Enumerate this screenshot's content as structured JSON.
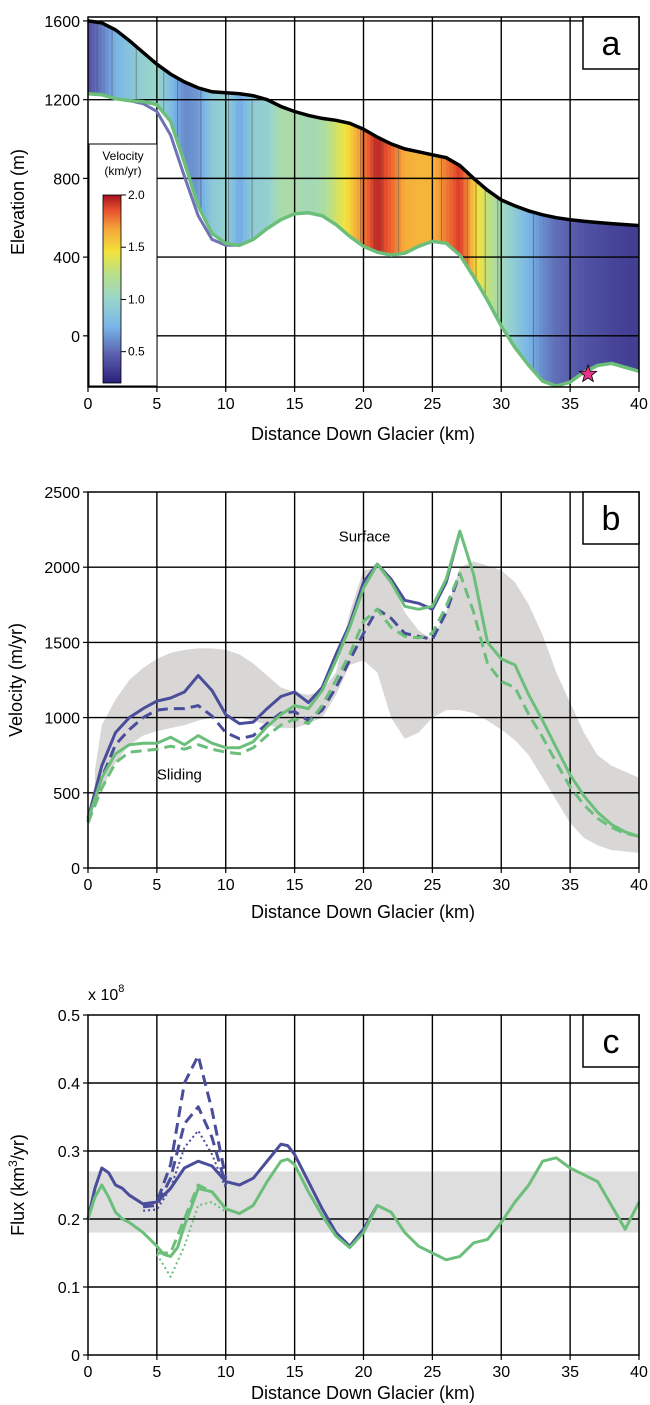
{
  "colors": {
    "blue": "#4a4d99",
    "green": "#6cbf7a",
    "envelope": "#d9d7d6",
    "band": "#dedede",
    "surface": "#000000",
    "star": "#e8348a"
  },
  "chart_data": [
    {
      "id": "a",
      "type": "area",
      "panel_label": "a",
      "xlabel": "Distance Down Glacier (km)",
      "ylabel": "Elevation (m)",
      "xlim": [
        0,
        40
      ],
      "ylim": [
        -260,
        1620
      ],
      "xticks": [
        0,
        5,
        10,
        15,
        20,
        25,
        30,
        35,
        40
      ],
      "yticks": [
        0,
        400,
        800,
        1200,
        1600
      ],
      "grid": true,
      "legend_position": "left",
      "colorbar": {
        "title_line1": "Velocity",
        "title_line2": "(km/yr)",
        "ticks": [
          0.5,
          1.0,
          1.5,
          2.0
        ],
        "tick_labels": [
          "0.5",
          "1.0",
          "1.5",
          "2.0"
        ],
        "range": [
          0.2,
          2.0
        ]
      },
      "surface": {
        "x": [
          0,
          1,
          2,
          3,
          4,
          5,
          6,
          7,
          8,
          9,
          10,
          11,
          12,
          13,
          14,
          15,
          16,
          17,
          18,
          19,
          20,
          21,
          22,
          23,
          24,
          25,
          26,
          27,
          28,
          29,
          30,
          31,
          32,
          33,
          34,
          35,
          36,
          37,
          38,
          39,
          40
        ],
        "y": [
          1600,
          1590,
          1555,
          1500,
          1440,
          1380,
          1330,
          1290,
          1260,
          1240,
          1235,
          1230,
          1220,
          1200,
          1165,
          1140,
          1120,
          1105,
          1095,
          1080,
          1050,
          1010,
          975,
          950,
          935,
          920,
          905,
          865,
          800,
          740,
          690,
          660,
          635,
          615,
          600,
          590,
          582,
          576,
          570,
          565,
          560
        ]
      },
      "bed": {
        "x": [
          0,
          1,
          2,
          3,
          4,
          5,
          6,
          7,
          8,
          9,
          10,
          11,
          12,
          13,
          14,
          15,
          16,
          17,
          18,
          19,
          20,
          21,
          22,
          23,
          24,
          25,
          26,
          27,
          28,
          29,
          30,
          31,
          32,
          33,
          34,
          35,
          36,
          37,
          38,
          39,
          40
        ],
        "y": [
          1230,
          1225,
          1205,
          1195,
          1190,
          1175,
          1090,
          880,
          660,
          520,
          470,
          460,
          490,
          545,
          590,
          620,
          625,
          610,
          565,
          505,
          455,
          425,
          410,
          420,
          455,
          480,
          470,
          410,
          300,
          180,
          50,
          -60,
          -150,
          -230,
          -255,
          -235,
          -185,
          -150,
          -140,
          -160,
          -180
        ]
      },
      "alt_bed": {
        "x": [
          0,
          1,
          2,
          3,
          4,
          5,
          6,
          7,
          8,
          9,
          10,
          11
        ],
        "y": [
          1230,
          1225,
          1205,
          1195,
          1180,
          1140,
          1020,
          810,
          610,
          490,
          460,
          460
        ]
      },
      "velocity_profile": {
        "x": [
          0,
          1,
          2,
          3,
          4,
          5,
          6,
          7,
          8,
          9,
          10,
          11,
          12,
          13,
          14,
          15,
          16,
          17,
          18,
          19,
          20,
          21,
          22,
          23,
          24,
          25,
          26,
          27,
          28,
          29,
          30,
          31,
          32,
          33,
          34,
          35,
          36,
          37,
          38,
          39,
          40
        ],
        "values": [
          0.4,
          0.55,
          0.75,
          0.85,
          0.95,
          1.0,
          0.8,
          0.6,
          0.65,
          0.9,
          0.95,
          0.7,
          0.92,
          0.95,
          1.1,
          1.1,
          1.05,
          1.1,
          1.3,
          1.5,
          1.75,
          1.95,
          1.8,
          1.62,
          1.6,
          1.6,
          1.75,
          1.9,
          1.55,
          1.25,
          1.05,
          0.9,
          0.75,
          0.6,
          0.5,
          0.45,
          0.4,
          0.38,
          0.35,
          0.33,
          0.32
        ]
      },
      "star": {
        "x": 36.3,
        "y": -195
      }
    },
    {
      "id": "b",
      "type": "line",
      "panel_label": "b",
      "xlabel": "Distance Down Glacier (km)",
      "ylabel": "Velocity (m/yr)",
      "xlim": [
        0,
        40
      ],
      "ylim": [
        0,
        2500
      ],
      "xticks": [
        0,
        5,
        10,
        15,
        20,
        25,
        30,
        35,
        40
      ],
      "yticks": [
        0,
        500,
        1000,
        1500,
        2000,
        2500
      ],
      "grid": true,
      "annotations": [
        {
          "text": "Surface",
          "x": 18.2,
          "y": 2170
        },
        {
          "text": "Sliding",
          "x": 5.0,
          "y": 590
        }
      ],
      "envelope": {
        "x": [
          0.5,
          1,
          2,
          3,
          4,
          5,
          6,
          7,
          8,
          9,
          10,
          11,
          12,
          13,
          14,
          15,
          16,
          17,
          18,
          19,
          20,
          21,
          22,
          23,
          24,
          25,
          26,
          27,
          28,
          29,
          30,
          31,
          32,
          33,
          34,
          35,
          36,
          37,
          38,
          39,
          40
        ],
        "upper": [
          650,
          950,
          1120,
          1250,
          1330,
          1390,
          1430,
          1450,
          1460,
          1460,
          1450,
          1420,
          1360,
          1280,
          1200,
          1170,
          1150,
          1180,
          1300,
          1700,
          1980,
          2000,
          1900,
          1700,
          1580,
          1520,
          1700,
          2000,
          2040,
          2010,
          1980,
          1900,
          1750,
          1550,
          1300,
          1100,
          900,
          750,
          680,
          640,
          600
        ],
        "lower": [
          400,
          520,
          700,
          820,
          880,
          910,
          930,
          950,
          980,
          1000,
          1010,
          1000,
          980,
          950,
          930,
          930,
          960,
          1000,
          1150,
          1350,
          1380,
          1300,
          1000,
          860,
          900,
          1000,
          1050,
          1050,
          1030,
          980,
          920,
          850,
          750,
          600,
          450,
          300,
          200,
          150,
          120,
          110,
          100
        ]
      },
      "series": [
        {
          "style": "solid",
          "color": "#4a4d99",
          "x": [
            0,
            1,
            2,
            3,
            4,
            5,
            6,
            7,
            8,
            9,
            10,
            11,
            12,
            13,
            14,
            15,
            16,
            17,
            18,
            19,
            20,
            21,
            22,
            23,
            24,
            25,
            26,
            27
          ],
          "values": [
            330,
            680,
            900,
            1000,
            1060,
            1110,
            1130,
            1170,
            1280,
            1180,
            1020,
            960,
            970,
            1060,
            1140,
            1170,
            1100,
            1200,
            1420,
            1620,
            1900,
            2020,
            1920,
            1780,
            1760,
            1720,
            1900,
            2240
          ]
        },
        {
          "style": "dashed",
          "color": "#4a4d99",
          "x": [
            0,
            1,
            2,
            3,
            4,
            5,
            6,
            7,
            8,
            9,
            10,
            11,
            12,
            13,
            14,
            15,
            16,
            17,
            18,
            19,
            20,
            21,
            22,
            23,
            24,
            25,
            26,
            27
          ],
          "values": [
            310,
            600,
            820,
            920,
            1000,
            1050,
            1060,
            1060,
            1080,
            1010,
            900,
            860,
            880,
            960,
            1030,
            1040,
            980,
            1050,
            1200,
            1380,
            1560,
            1720,
            1660,
            1560,
            1540,
            1520,
            1700,
            1960
          ]
        },
        {
          "style": "solid",
          "color": "#6cbf7a",
          "x": [
            0,
            1,
            2,
            3,
            4,
            5,
            6,
            7,
            8,
            9,
            10,
            11,
            12,
            13,
            14,
            15,
            16,
            17,
            18,
            19,
            20,
            21,
            22,
            23,
            24,
            25,
            26,
            27,
            28,
            29,
            30,
            31,
            32,
            33,
            34,
            35,
            36,
            37,
            38,
            39,
            40
          ],
          "values": [
            320,
            600,
            760,
            820,
            830,
            830,
            870,
            820,
            880,
            830,
            800,
            800,
            840,
            940,
            1020,
            1080,
            1060,
            1180,
            1380,
            1600,
            1860,
            2020,
            1900,
            1740,
            1720,
            1740,
            1920,
            2240,
            1950,
            1500,
            1390,
            1350,
            1150,
            980,
            800,
            620,
            480,
            370,
            290,
            240,
            210
          ]
        },
        {
          "style": "dashed",
          "color": "#6cbf7a",
          "x": [
            0,
            1,
            2,
            3,
            4,
            5,
            6,
            7,
            8,
            9,
            10,
            11,
            12,
            13,
            14,
            15,
            16,
            17,
            18,
            19,
            20,
            21,
            22,
            23,
            24,
            25,
            26,
            27,
            28,
            29,
            30,
            31,
            32,
            33,
            34,
            35,
            36,
            37,
            38,
            39,
            40
          ],
          "values": [
            300,
            530,
            700,
            770,
            780,
            790,
            810,
            790,
            820,
            790,
            770,
            760,
            800,
            880,
            950,
            990,
            960,
            1080,
            1250,
            1420,
            1640,
            1720,
            1600,
            1540,
            1530,
            1560,
            1740,
            1960,
            1700,
            1360,
            1240,
            1200,
            1020,
            870,
            700,
            540,
            420,
            330,
            270,
            230,
            210
          ]
        }
      ]
    },
    {
      "id": "c",
      "type": "line",
      "panel_label": "c",
      "xlabel": "Distance Down Glacier (km)",
      "ylabel_main": "Flux (km",
      "ylabel_sup": "3",
      "ylabel_tail": "/yr)",
      "scale_base": "x 10",
      "scale_exp": "8",
      "xlim": [
        0,
        40
      ],
      "ylim": [
        0,
        0.5
      ],
      "xticks": [
        0,
        5,
        10,
        15,
        20,
        25,
        30,
        35,
        40
      ],
      "yticks": [
        0,
        0.1,
        0.2,
        0.3,
        0.4,
        0.5
      ],
      "ytick_labels": [
        "0",
        "0.1",
        "0.2",
        "0.3",
        "0.4",
        "0.5"
      ],
      "grid": true,
      "band": [
        0.18,
        0.27
      ],
      "series": [
        {
          "style": "solid",
          "color": "#4a4d99",
          "x": [
            0,
            0.5,
            1,
            1.5,
            2,
            2.5,
            3,
            4,
            5,
            6,
            7,
            8,
            9,
            10,
            11,
            12,
            13,
            14,
            14.5,
            15,
            16,
            17,
            18,
            19,
            20,
            21
          ],
          "values": [
            0.2,
            0.245,
            0.275,
            0.268,
            0.25,
            0.245,
            0.235,
            0.222,
            0.225,
            0.245,
            0.275,
            0.285,
            0.278,
            0.255,
            0.25,
            0.26,
            0.285,
            0.31,
            0.308,
            0.295,
            0.255,
            0.215,
            0.18,
            0.16,
            0.185,
            0.22
          ]
        },
        {
          "style": "dashed",
          "color": "#4a4d99",
          "x": [
            4,
            5,
            6,
            7,
            8,
            9,
            10
          ],
          "values": [
            0.222,
            0.225,
            0.28,
            0.4,
            0.44,
            0.36,
            0.26
          ]
        },
        {
          "style": "dashed",
          "color": "#4a4d99",
          "x": [
            4,
            5,
            6,
            7,
            8,
            9,
            10
          ],
          "values": [
            0.218,
            0.22,
            0.26,
            0.34,
            0.365,
            0.32,
            0.25
          ]
        },
        {
          "style": "dotted",
          "color": "#4a4d99",
          "x": [
            4,
            5,
            6,
            7,
            8,
            9,
            10
          ],
          "values": [
            0.212,
            0.214,
            0.245,
            0.305,
            0.33,
            0.295,
            0.245
          ]
        },
        {
          "style": "solid",
          "color": "#6cbf7a",
          "x": [
            0,
            0.5,
            1,
            1.5,
            2,
            2.5,
            3,
            4,
            5,
            5.5,
            6,
            6.5,
            7,
            8,
            9,
            10,
            11,
            12,
            13,
            14,
            14.5,
            15,
            16,
            17,
            18,
            19,
            20,
            21,
            22,
            23,
            24,
            25,
            26,
            27,
            28,
            29,
            30,
            31,
            32,
            33,
            34,
            35,
            36,
            37,
            38,
            39,
            40
          ],
          "values": [
            0.2,
            0.232,
            0.25,
            0.232,
            0.21,
            0.2,
            0.195,
            0.18,
            0.16,
            0.148,
            0.145,
            0.158,
            0.19,
            0.245,
            0.24,
            0.215,
            0.208,
            0.22,
            0.255,
            0.285,
            0.288,
            0.28,
            0.24,
            0.205,
            0.175,
            0.158,
            0.18,
            0.22,
            0.21,
            0.18,
            0.16,
            0.15,
            0.14,
            0.145,
            0.165,
            0.17,
            0.195,
            0.225,
            0.25,
            0.285,
            0.29,
            0.275,
            0.265,
            0.255,
            0.22,
            0.185,
            0.225
          ]
        },
        {
          "style": "dashed",
          "color": "#6cbf7a",
          "x": [
            5,
            6,
            7,
            8,
            9,
            10
          ],
          "values": [
            0.15,
            0.15,
            0.2,
            0.25,
            0.24,
            0.215
          ]
        },
        {
          "style": "dotted",
          "color": "#6cbf7a",
          "x": [
            5,
            6,
            7,
            8,
            9,
            10
          ],
          "values": [
            0.148,
            0.115,
            0.16,
            0.22,
            0.225,
            0.21
          ]
        }
      ]
    }
  ]
}
